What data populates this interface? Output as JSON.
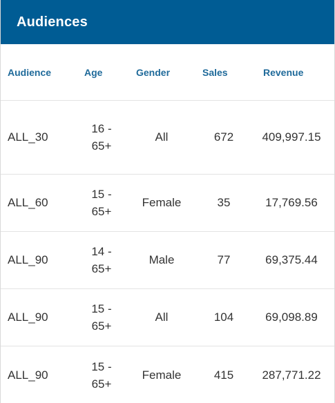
{
  "header": {
    "title": "Audiences"
  },
  "colors": {
    "header_bg": "#005c94",
    "column_header_text": "#1f6a9a",
    "body_text": "#333333",
    "divider": "#e3e3e3"
  },
  "table": {
    "columns": [
      "Audience",
      "Age",
      "Gender",
      "Sales",
      "Revenue"
    ],
    "rows": [
      {
        "audience": "ALL_30",
        "age_line1": "16 -",
        "age_line2": "65+",
        "gender": "All",
        "sales": "672",
        "revenue": "409,997.15"
      },
      {
        "audience": "ALL_60",
        "age_line1": "15 -",
        "age_line2": "65+",
        "gender": "Female",
        "sales": "35",
        "revenue": "17,769.56"
      },
      {
        "audience": "ALL_90",
        "age_line1": "14 -",
        "age_line2": "65+",
        "gender": "Male",
        "sales": "77",
        "revenue": "69,375.44"
      },
      {
        "audience": "ALL_90",
        "age_line1": "15 -",
        "age_line2": "65+",
        "gender": "All",
        "sales": "104",
        "revenue": "69,098.89"
      },
      {
        "audience": "ALL_90",
        "age_line1": "15 -",
        "age_line2": "65+",
        "gender": "Female",
        "sales": "415",
        "revenue": "287,771.22"
      }
    ]
  }
}
